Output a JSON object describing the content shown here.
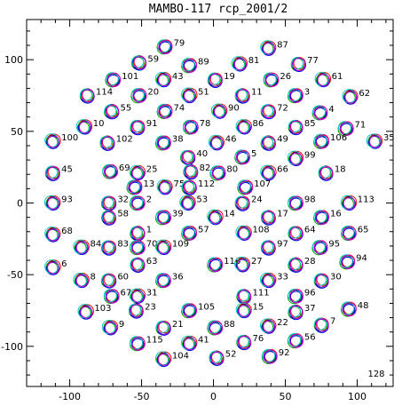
{
  "chart_data": {
    "type": "scatter",
    "title": "MAMBO-117 rcp_2001/2",
    "xlabel": "",
    "ylabel": "",
    "xlim": [
      -130,
      125
    ],
    "ylim": [
      -128,
      128
    ],
    "xticks": [
      -100,
      -50,
      0,
      50,
      100
    ],
    "yticks": [
      -100,
      -50,
      0,
      50,
      100
    ],
    "grid": false,
    "ring_colors": [
      "#000000",
      "#ff0000",
      "#00aa00",
      "#0000ff",
      "#00cccc",
      "#cc00cc"
    ],
    "corner_label": "128",
    "points": [
      {
        "id": "79",
        "x": -34,
        "y": 109
      },
      {
        "id": "87",
        "x": 38,
        "y": 108
      },
      {
        "id": "59",
        "x": -52,
        "y": 98
      },
      {
        "id": "89",
        "x": -17,
        "y": 96
      },
      {
        "id": "81",
        "x": 18,
        "y": 97
      },
      {
        "id": "77",
        "x": 59,
        "y": 97
      },
      {
        "id": "101",
        "x": -70,
        "y": 86
      },
      {
        "id": "43",
        "x": -35,
        "y": 86
      },
      {
        "id": "19",
        "x": 1,
        "y": 86
      },
      {
        "id": "26",
        "x": 40,
        "y": 86
      },
      {
        "id": "61",
        "x": 76,
        "y": 86
      },
      {
        "id": "114",
        "x": -88,
        "y": 75
      },
      {
        "id": "20",
        "x": -52,
        "y": 75
      },
      {
        "id": "51",
        "x": -17,
        "y": 75
      },
      {
        "id": "11",
        "x": 20,
        "y": 75
      },
      {
        "id": "3",
        "x": 57,
        "y": 75
      },
      {
        "id": "62",
        "x": 95,
        "y": 74
      },
      {
        "id": "55",
        "x": -71,
        "y": 64
      },
      {
        "id": "74",
        "x": -34,
        "y": 64
      },
      {
        "id": "90",
        "x": 4,
        "y": 64
      },
      {
        "id": "72",
        "x": 38,
        "y": 64
      },
      {
        "id": "4",
        "x": 74,
        "y": 63
      },
      {
        "id": "10",
        "x": -90,
        "y": 53
      },
      {
        "id": "91",
        "x": -53,
        "y": 53
      },
      {
        "id": "78",
        "x": -16,
        "y": 53
      },
      {
        "id": "86",
        "x": 21,
        "y": 53
      },
      {
        "id": "85",
        "x": 57,
        "y": 53
      },
      {
        "id": "71",
        "x": 92,
        "y": 52
      },
      {
        "id": "100",
        "x": -112,
        "y": 43
      },
      {
        "id": "102",
        "x": -74,
        "y": 42
      },
      {
        "id": "38",
        "x": -35,
        "y": 42
      },
      {
        "id": "46",
        "x": 2,
        "y": 42
      },
      {
        "id": "49",
        "x": 38,
        "y": 42
      },
      {
        "id": "106",
        "x": 75,
        "y": 43
      },
      {
        "id": "35",
        "x": 112,
        "y": 43
      },
      {
        "id": "40",
        "x": -18,
        "y": 32
      },
      {
        "id": "5",
        "x": 20,
        "y": 32
      },
      {
        "id": "99",
        "x": 57,
        "y": 31
      },
      {
        "id": "45",
        "x": -112,
        "y": 21
      },
      {
        "id": "69",
        "x": -72,
        "y": 22
      },
      {
        "id": "25",
        "x": -53,
        "y": 21
      },
      {
        "id": "82",
        "x": -16,
        "y": 22
      },
      {
        "id": "80",
        "x": 3,
        "y": 21
      },
      {
        "id": "66",
        "x": 38,
        "y": 21
      },
      {
        "id": "18",
        "x": 78,
        "y": 21
      },
      {
        "id": "13",
        "x": -55,
        "y": 11
      },
      {
        "id": "75",
        "x": -34,
        "y": 11
      },
      {
        "id": "112",
        "x": -17,
        "y": 11
      },
      {
        "id": "107",
        "x": 22,
        "y": 11
      },
      {
        "id": "93",
        "x": -112,
        "y": 0
      },
      {
        "id": "32",
        "x": -73,
        "y": 0
      },
      {
        "id": "2",
        "x": -53,
        "y": 0
      },
      {
        "id": "53",
        "x": -18,
        "y": 0
      },
      {
        "id": "24",
        "x": 20,
        "y": 0
      },
      {
        "id": "98",
        "x": 57,
        "y": 0
      },
      {
        "id": "113",
        "x": 94,
        "y": 0
      },
      {
        "id": "58",
        "x": -73,
        "y": -10
      },
      {
        "id": "39",
        "x": -35,
        "y": -10
      },
      {
        "id": "14",
        "x": 1,
        "y": -10
      },
      {
        "id": "17",
        "x": 38,
        "y": -10
      },
      {
        "id": "16",
        "x": 75,
        "y": -10
      },
      {
        "id": "68",
        "x": -112,
        "y": -22
      },
      {
        "id": "1",
        "x": -53,
        "y": -21
      },
      {
        "id": "57",
        "x": -17,
        "y": -21
      },
      {
        "id": "108",
        "x": 21,
        "y": -21
      },
      {
        "id": "64",
        "x": 57,
        "y": -21
      },
      {
        "id": "65",
        "x": 94,
        "y": -21
      },
      {
        "id": "84",
        "x": -92,
        "y": -31
      },
      {
        "id": "83",
        "x": -73,
        "y": -31
      },
      {
        "id": "70",
        "x": -53,
        "y": -31
      },
      {
        "id": "109",
        "x": -35,
        "y": -31
      },
      {
        "id": "97",
        "x": 38,
        "y": -31
      },
      {
        "id": "95",
        "x": 74,
        "y": -31
      },
      {
        "id": "6",
        "x": -112,
        "y": -45
      },
      {
        "id": "63",
        "x": -53,
        "y": -43
      },
      {
        "id": "116",
        "x": 1,
        "y": -43
      },
      {
        "id": "27",
        "x": 20,
        "y": -43
      },
      {
        "id": "28",
        "x": 57,
        "y": -43
      },
      {
        "id": "94",
        "x": 93,
        "y": -41
      },
      {
        "id": "8",
        "x": -92,
        "y": -54
      },
      {
        "id": "60",
        "x": -73,
        "y": -54
      },
      {
        "id": "36",
        "x": -35,
        "y": -54
      },
      {
        "id": "33",
        "x": 38,
        "y": -54
      },
      {
        "id": "30",
        "x": 75,
        "y": -54
      },
      {
        "id": "67",
        "x": -71,
        "y": -65
      },
      {
        "id": "31",
        "x": -53,
        "y": -65
      },
      {
        "id": "111",
        "x": 21,
        "y": -65
      },
      {
        "id": "96",
        "x": 57,
        "y": -65
      },
      {
        "id": "103",
        "x": -89,
        "y": -76
      },
      {
        "id": "23",
        "x": -54,
        "y": -75
      },
      {
        "id": "105",
        "x": -17,
        "y": -75
      },
      {
        "id": "15",
        "x": 21,
        "y": -75
      },
      {
        "id": "37",
        "x": 57,
        "y": -76
      },
      {
        "id": "48",
        "x": 94,
        "y": -74
      },
      {
        "id": "9",
        "x": -72,
        "y": -87
      },
      {
        "id": "21",
        "x": -35,
        "y": -87
      },
      {
        "id": "88",
        "x": 1,
        "y": -87
      },
      {
        "id": "22",
        "x": 38,
        "y": -86
      },
      {
        "id": "7",
        "x": 75,
        "y": -85
      },
      {
        "id": "115",
        "x": -53,
        "y": -98
      },
      {
        "id": "41",
        "x": -17,
        "y": -98
      },
      {
        "id": "76",
        "x": 21,
        "y": -97
      },
      {
        "id": "56",
        "x": 57,
        "y": -96
      },
      {
        "id": "104",
        "x": -35,
        "y": -109
      },
      {
        "id": "52",
        "x": 2,
        "y": -108
      },
      {
        "id": "92",
        "x": 39,
        "y": -107
      }
    ]
  }
}
